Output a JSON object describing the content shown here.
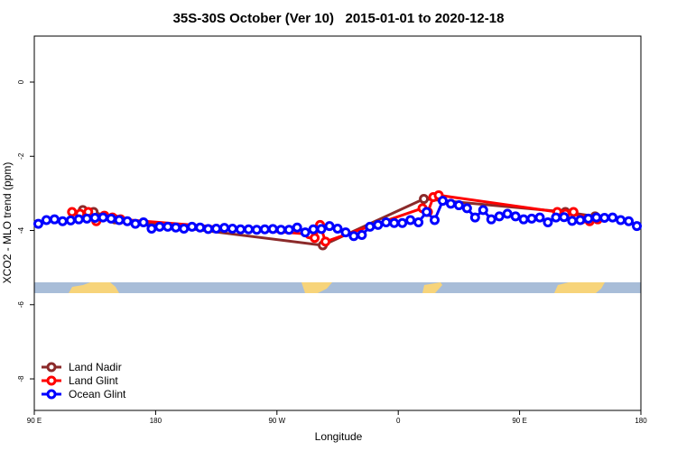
{
  "chart_data": {
    "type": "line",
    "title": "35S-30S October (Ver 10)   2015-01-01 to 2020-12-18",
    "xlabel": "Longitude",
    "ylabel": "XCO2 - MLO trend (ppm)",
    "xlim": [
      90,
      540
    ],
    "ylim": [
      -8.85,
      1.24
    ],
    "xticks": [
      {
        "value": 90,
        "label": "90 E"
      },
      180,
      {
        "value": 270,
        "label": "90 W"
      },
      {
        "value": 360,
        "label": "0"
      },
      {
        "value": 450,
        "label": "90 E"
      },
      {
        "value": 540,
        "label": "180"
      }
    ],
    "yticks": [
      0,
      -2,
      -4,
      -6,
      -8
    ],
    "legend": "bottomleft",
    "series": [
      {
        "name": "Land Nadir",
        "color": "#8b2a2a",
        "x": [
          126,
          134,
          150,
          304,
          379,
          484,
          506
        ],
        "values": [
          -3.45,
          -3.5,
          -3.7,
          -4.4,
          -3.15,
          -3.5,
          -3.62
        ]
      },
      {
        "name": "Land Glint",
        "color": "#ff0000",
        "x": [
          118,
          124,
          130,
          136,
          142,
          148,
          154,
          294,
          298,
          302,
          306,
          378,
          382,
          386,
          390,
          478,
          484,
          490,
          496,
          502,
          508
        ],
        "values": [
          -3.5,
          -3.55,
          -3.5,
          -3.75,
          -3.6,
          -3.65,
          -3.7,
          -4.1,
          -4.2,
          -3.85,
          -4.3,
          -3.4,
          -3.5,
          -3.1,
          -3.05,
          -3.5,
          -3.55,
          -3.5,
          -3.7,
          -3.75,
          -3.7
        ]
      },
      {
        "name": "Ocean Glint",
        "color": "#0000ff",
        "x": [
          93,
          99,
          105,
          111,
          117,
          123,
          129,
          135,
          141,
          147,
          153,
          159,
          165,
          171,
          177,
          183,
          189,
          195,
          201,
          207,
          213,
          219,
          225,
          231,
          237,
          243,
          249,
          255,
          261,
          267,
          273,
          279,
          285,
          291,
          297,
          303,
          309,
          315,
          321,
          327,
          333,
          339,
          345,
          351,
          357,
          363,
          369,
          375,
          381,
          387,
          393,
          399,
          405,
          411,
          417,
          423,
          429,
          435,
          441,
          447,
          453,
          459,
          465,
          471,
          477,
          483,
          489,
          495,
          501,
          507,
          513,
          519,
          525,
          531,
          537
        ],
        "values": [
          -3.82,
          -3.72,
          -3.7,
          -3.75,
          -3.73,
          -3.7,
          -3.68,
          -3.66,
          -3.65,
          -3.68,
          -3.72,
          -3.75,
          -3.82,
          -3.78,
          -3.95,
          -3.9,
          -3.9,
          -3.92,
          -3.95,
          -3.9,
          -3.92,
          -3.96,
          -3.95,
          -3.93,
          -3.95,
          -3.97,
          -3.97,
          -3.98,
          -3.97,
          -3.96,
          -3.98,
          -3.98,
          -3.92,
          -4.05,
          -3.97,
          -3.96,
          -3.88,
          -3.95,
          -4.05,
          -4.15,
          -4.12,
          -3.9,
          -3.85,
          -3.78,
          -3.8,
          -3.8,
          -3.72,
          -3.78,
          -3.5,
          -3.72,
          -3.2,
          -3.28,
          -3.32,
          -3.4,
          -3.65,
          -3.45,
          -3.7,
          -3.62,
          -3.55,
          -3.62,
          -3.7,
          -3.68,
          -3.65,
          -3.78,
          -3.65,
          -3.64,
          -3.74,
          -3.72,
          -3.68,
          -3.65,
          -3.66,
          -3.65,
          -3.72,
          -3.75,
          -3.88
        ]
      }
    ]
  }
}
